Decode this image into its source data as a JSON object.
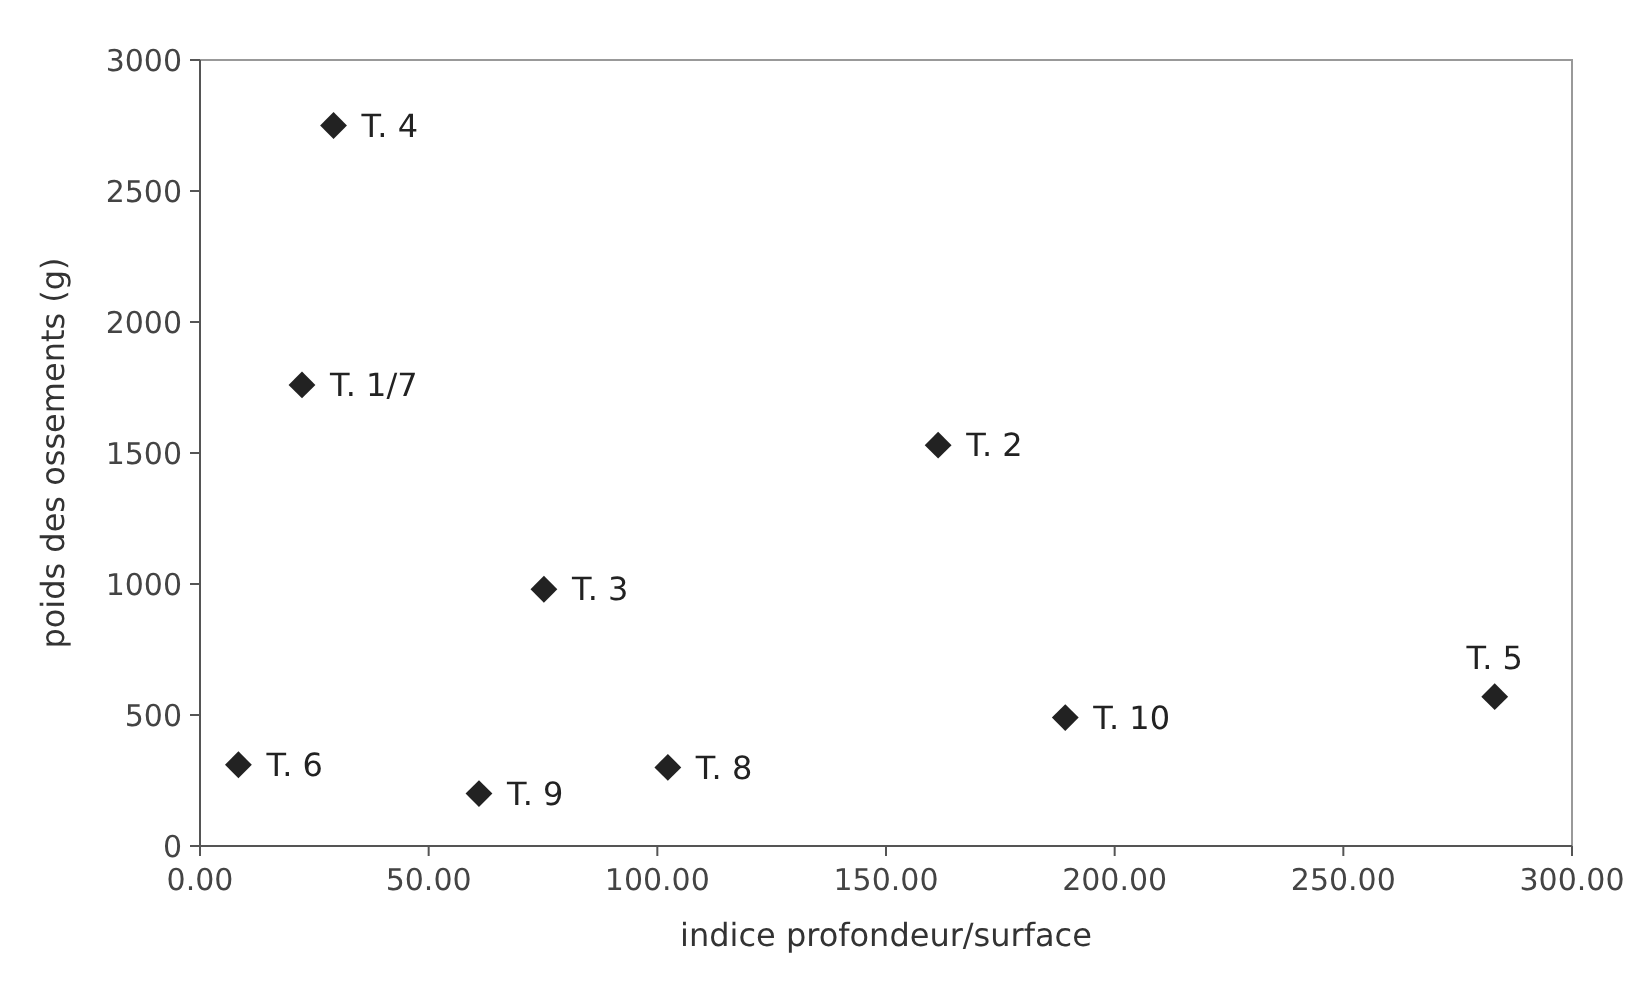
{
  "chart_data": {
    "type": "scatter",
    "xlabel": "indice profondeur/surface",
    "ylabel": "poids des ossements (g)",
    "x": [
      29.2,
      22.3,
      75.2,
      8.4,
      61.0,
      102.3,
      161.4,
      189.2,
      283.1
    ],
    "series": [
      {
        "color": "#222222",
        "values": [
          2750,
          1760,
          980,
          310,
          200,
          300,
          1530,
          490,
          570
        ]
      }
    ],
    "annotations": [
      {
        "text": "T. 4",
        "x": 29.2,
        "y": 2750
      },
      {
        "text": "T. 1/7",
        "x": 22.3,
        "y": 1760
      },
      {
        "text": "T. 3",
        "x": 75.2,
        "y": 980
      },
      {
        "text": "T. 6",
        "x": 8.4,
        "y": 310
      },
      {
        "text": "T. 9",
        "x": 61.0,
        "y": 200
      },
      {
        "text": "T. 8",
        "x": 102.3,
        "y": 300
      },
      {
        "text": "T. 2",
        "x": 161.4,
        "y": 1530
      },
      {
        "text": "T. 10",
        "x": 189.2,
        "y": 490
      },
      {
        "text": "T. 5",
        "x": 283.1,
        "y": 570
      }
    ],
    "xlim": [
      0,
      300
    ],
    "ylim": [
      0,
      3000
    ],
    "xticks": [
      {
        "value": 0,
        "label": "0.00"
      },
      {
        "value": 50,
        "label": "50.00"
      },
      {
        "value": 100,
        "label": "100.00"
      },
      {
        "value": 150,
        "label": "150.00"
      },
      {
        "value": 200,
        "label": "200.00"
      },
      {
        "value": 250,
        "label": "250.00"
      },
      {
        "value": 300,
        "label": "300.00"
      }
    ],
    "yticks": [
      0,
      500,
      1000,
      1500,
      2000,
      2500,
      3000
    ],
    "grid": false,
    "marker": "diamond"
  }
}
